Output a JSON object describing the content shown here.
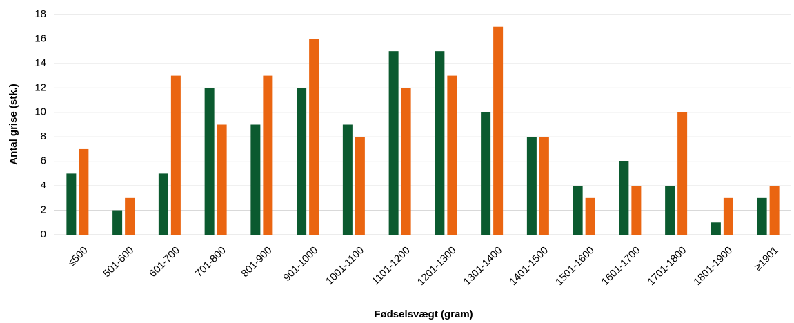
{
  "chart_data": {
    "type": "bar",
    "x_label": "Fødselsvægt (gram)",
    "y_label": "Antal grise (stk.)",
    "categories": [
      "≤500",
      "501-600",
      "601-700",
      "701-800",
      "801-900",
      "901-1000",
      "1001-1100",
      "1101-1200",
      "1201-1300",
      "1301-1400",
      "1401-1500",
      "1501-1600",
      "1601-1700",
      "1701-1800",
      "1801-1900",
      "≥1901"
    ],
    "series": [
      {
        "color": "#0b5a2f",
        "values": [
          5,
          2,
          5,
          12,
          9,
          12,
          9,
          15,
          15,
          10,
          8,
          4,
          6,
          4,
          1,
          3
        ]
      },
      {
        "color": "#ea6511",
        "values": [
          7,
          3,
          13,
          9,
          13,
          16,
          8,
          12,
          13,
          17,
          8,
          3,
          4,
          10,
          3,
          4
        ]
      }
    ],
    "ylim": [
      0,
      18
    ],
    "yticks": [
      0,
      2,
      4,
      6,
      8,
      10,
      12,
      14,
      16,
      18
    ],
    "grid": true
  }
}
